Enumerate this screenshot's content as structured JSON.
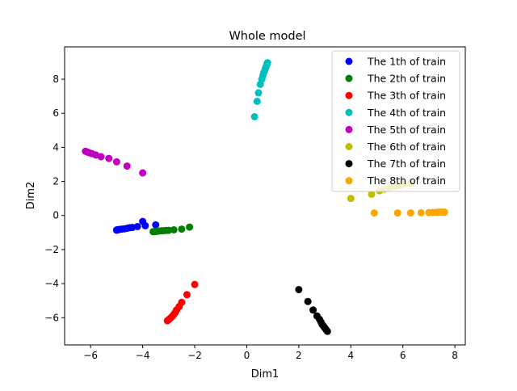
{
  "chart_data": {
    "type": "scatter",
    "title": "Whole model",
    "xlabel": "Dim1",
    "ylabel": "Dim2",
    "xlim": [
      -7.0,
      8.4
    ],
    "ylim": [
      -7.6,
      9.9
    ],
    "xticks": [
      -6,
      -4,
      -2,
      0,
      2,
      4,
      6,
      8
    ],
    "xtick_labels": [
      "−6",
      "−4",
      "−2",
      "0",
      "2",
      "4",
      "6",
      "8"
    ],
    "yticks": [
      -6,
      -4,
      -2,
      0,
      2,
      4,
      6,
      8
    ],
    "ytick_labels": [
      "−6",
      "−4",
      "−2",
      "0",
      "2",
      "4",
      "6",
      "8"
    ],
    "grid": false,
    "legend_position": "top-right",
    "series": [
      {
        "name": "The 1th of train",
        "color": "#0000ff",
        "x": [
          -4.0,
          -3.5,
          -3.9,
          -4.2,
          -4.4,
          -4.5,
          -4.6,
          -4.7,
          -4.8,
          -4.9,
          -4.95,
          -5.0,
          -5.0
        ],
        "y": [
          -0.35,
          -0.55,
          -0.6,
          -0.65,
          -0.7,
          -0.72,
          -0.75,
          -0.78,
          -0.8,
          -0.82,
          -0.84,
          -0.85,
          -0.86
        ]
      },
      {
        "name": "The 2th of train",
        "color": "#008000",
        "x": [
          -2.2,
          -2.5,
          -2.8,
          -3.0,
          -3.1,
          -3.2,
          -3.3,
          -3.4,
          -3.5,
          -3.6
        ],
        "y": [
          -0.68,
          -0.8,
          -0.84,
          -0.87,
          -0.88,
          -0.89,
          -0.9,
          -0.92,
          -0.94,
          -0.95
        ]
      },
      {
        "name": "The 3th of train",
        "color": "#ff0000",
        "x": [
          -2.0,
          -2.3,
          -2.5,
          -2.6,
          -2.7,
          -2.75,
          -2.8,
          -2.85,
          -2.9,
          -2.95,
          -3.0,
          -3.05
        ],
        "y": [
          -4.05,
          -4.65,
          -5.1,
          -5.35,
          -5.55,
          -5.7,
          -5.8,
          -5.9,
          -5.98,
          -6.05,
          -6.12,
          -6.18
        ]
      },
      {
        "name": "The 4th of train",
        "color": "#00bfbf",
        "x": [
          0.3,
          0.4,
          0.45,
          0.52,
          0.58,
          0.62,
          0.66,
          0.7,
          0.73,
          0.76,
          0.78,
          0.8
        ],
        "y": [
          5.8,
          6.7,
          7.2,
          7.7,
          8.0,
          8.2,
          8.4,
          8.55,
          8.68,
          8.8,
          8.9,
          8.97
        ]
      },
      {
        "name": "The 5th of train",
        "color": "#bf00bf",
        "x": [
          -4.0,
          -4.6,
          -5.0,
          -5.3,
          -5.6,
          -5.8,
          -5.95,
          -6.05,
          -6.12,
          -6.2
        ],
        "y": [
          2.5,
          2.9,
          3.15,
          3.35,
          3.45,
          3.55,
          3.63,
          3.68,
          3.72,
          3.77
        ]
      },
      {
        "name": "The 6th of train",
        "color": "#bfbf00",
        "x": [
          4.0,
          4.8,
          5.1,
          5.3,
          5.5,
          5.7,
          5.9,
          6.1,
          6.3
        ],
        "y": [
          1.0,
          1.25,
          1.45,
          1.55,
          1.62,
          1.7,
          1.78,
          1.85,
          1.9
        ]
      },
      {
        "name": "The 7th of train",
        "color": "#000000",
        "x": [
          2.0,
          2.35,
          2.55,
          2.7,
          2.8,
          2.85,
          2.9,
          2.95,
          3.0,
          3.05,
          3.1
        ],
        "y": [
          -4.35,
          -5.05,
          -5.55,
          -5.9,
          -6.1,
          -6.25,
          -6.4,
          -6.5,
          -6.6,
          -6.7,
          -6.8
        ]
      },
      {
        "name": "The 8th of train",
        "color": "#ffa500",
        "x": [
          4.9,
          5.8,
          6.3,
          6.7,
          7.0,
          7.15,
          7.3,
          7.4,
          7.5,
          7.6
        ],
        "y": [
          0.15,
          0.15,
          0.15,
          0.16,
          0.17,
          0.18,
          0.19,
          0.2,
          0.2,
          0.2
        ]
      }
    ]
  }
}
